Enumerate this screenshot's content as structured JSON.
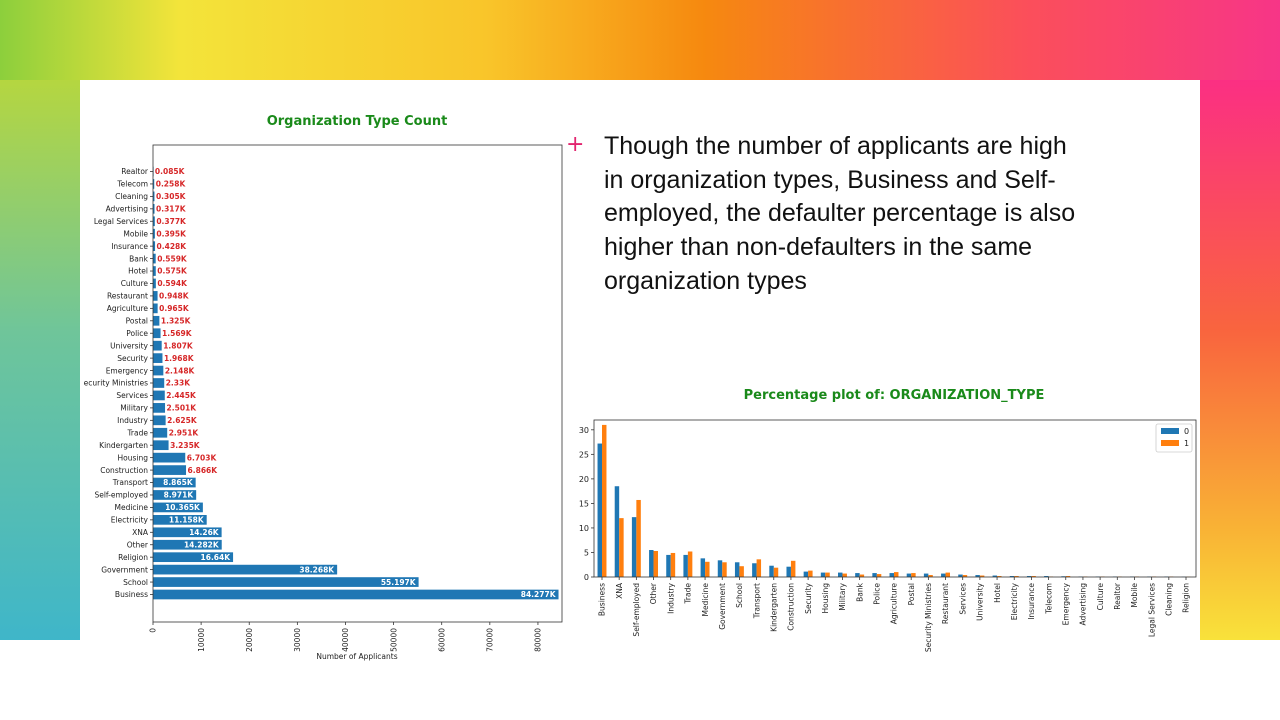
{
  "slide": {
    "bullet_marker": "+",
    "text": "Though the number of applicants are high in organization types, Business and Self-employed, the defaulter percentage is also higher than non-defaulters in the same organization types",
    "colors": {
      "title_green": "#1a8a1a",
      "bar_blue": "#1f77b4",
      "series_orange": "#ff7f0e",
      "label_red": "#d62728",
      "bullet_pink": "#e2256f"
    }
  },
  "chart_data": [
    {
      "type": "bar",
      "orientation": "horizontal",
      "title": "Organization Type Count",
      "xlabel": "Number of Applicants",
      "ylabel": "",
      "xlim": [
        0,
        85000
      ],
      "xticks": [
        0,
        10000,
        20000,
        30000,
        40000,
        50000,
        60000,
        70000,
        80000
      ],
      "categories": [
        "Realtor",
        "Telecom",
        "Cleaning",
        "Advertising",
        "Legal Services",
        "Mobile",
        "Insurance",
        "Bank",
        "Hotel",
        "Culture",
        "Restaurant",
        "Agriculture",
        "Postal",
        "Police",
        "University",
        "Security",
        "Emergency",
        "ecurity Ministries",
        "Services",
        "Military",
        "Industry",
        "Trade",
        "Kindergarten",
        "Housing",
        "Construction",
        "Transport",
        "Self-employed",
        "Medicine",
        "Electricity",
        "XNA",
        "Other",
        "Religion",
        "Government",
        "School",
        "Business"
      ],
      "values": [
        85,
        258,
        305,
        317,
        377,
        395,
        428,
        559,
        575,
        594,
        948,
        965,
        1325,
        1569,
        1807,
        1968,
        2148,
        2330,
        2445,
        2501,
        2625,
        2951,
        3235,
        6703,
        6866,
        8865,
        8971,
        10365,
        11158,
        14260,
        14282,
        16640,
        38268,
        55197,
        84277
      ],
      "data_labels": [
        "0.085K",
        "0.258K",
        "0.305K",
        "0.317K",
        "0.377K",
        "0.395K",
        "0.428K",
        "0.559K",
        "0.575K",
        "0.594K",
        "0.948K",
        "0.965K",
        "1.325K",
        "1.569K",
        "1.807K",
        "1.968K",
        "2.148K",
        "2.33K",
        "2.445K",
        "2.501K",
        "2.625K",
        "2.951K",
        "3.235K",
        "6.703K",
        "6.866K",
        "8.865K",
        "8.971K",
        "10.365K",
        "11.158K",
        "14.26K",
        "14.282K",
        "16.64K",
        "38.268K",
        "55.197K",
        "84.277K"
      ]
    },
    {
      "type": "bar",
      "orientation": "vertical",
      "title": "Percentage plot of: ORGANIZATION_TYPE",
      "xlabel": "",
      "ylabel": "",
      "ylim": [
        0,
        32
      ],
      "yticks": [
        0,
        5,
        10,
        15,
        20,
        25,
        30
      ],
      "legend_position": "top-right",
      "categories": [
        "Business",
        "XNA",
        "Self-employed",
        "Other",
        "Industry",
        "Trade",
        "Medicine",
        "Government",
        "School",
        "Transport",
        "Kindergarten",
        "Construction",
        "Security",
        "Housing",
        "Military",
        "Bank",
        "Police",
        "Agriculture",
        "Postal",
        "Security Ministries",
        "Restaurant",
        "Services",
        "University",
        "Hotel",
        "Electricity",
        "Insurance",
        "Telecom",
        "Emergency",
        "Advertising",
        "Culture",
        "Realtor",
        "Mobile",
        "Legal Services",
        "Cleaning",
        "Religion"
      ],
      "series": [
        {
          "name": "0",
          "values": [
            27.2,
            18.5,
            12.2,
            5.5,
            4.5,
            4.5,
            3.8,
            3.4,
            3.0,
            2.8,
            2.3,
            2.1,
            1.1,
            0.9,
            0.9,
            0.8,
            0.8,
            0.8,
            0.7,
            0.7,
            0.7,
            0.5,
            0.4,
            0.3,
            0.2,
            0.2,
            0.2,
            0.15,
            0.1,
            0.1,
            0.1,
            0.1,
            0.1,
            0.1,
            0.05
          ]
        },
        {
          "name": "1",
          "values": [
            31.0,
            12.0,
            15.7,
            5.3,
            4.9,
            5.2,
            3.1,
            3.0,
            2.2,
            3.6,
            1.9,
            3.3,
            1.3,
            0.9,
            0.7,
            0.5,
            0.6,
            1.0,
            0.8,
            0.4,
            0.9,
            0.4,
            0.3,
            0.2,
            0.2,
            0.2,
            0.1,
            0.2,
            0.1,
            0.1,
            0.1,
            0.1,
            0.1,
            0.1,
            0.05
          ]
        }
      ]
    }
  ]
}
